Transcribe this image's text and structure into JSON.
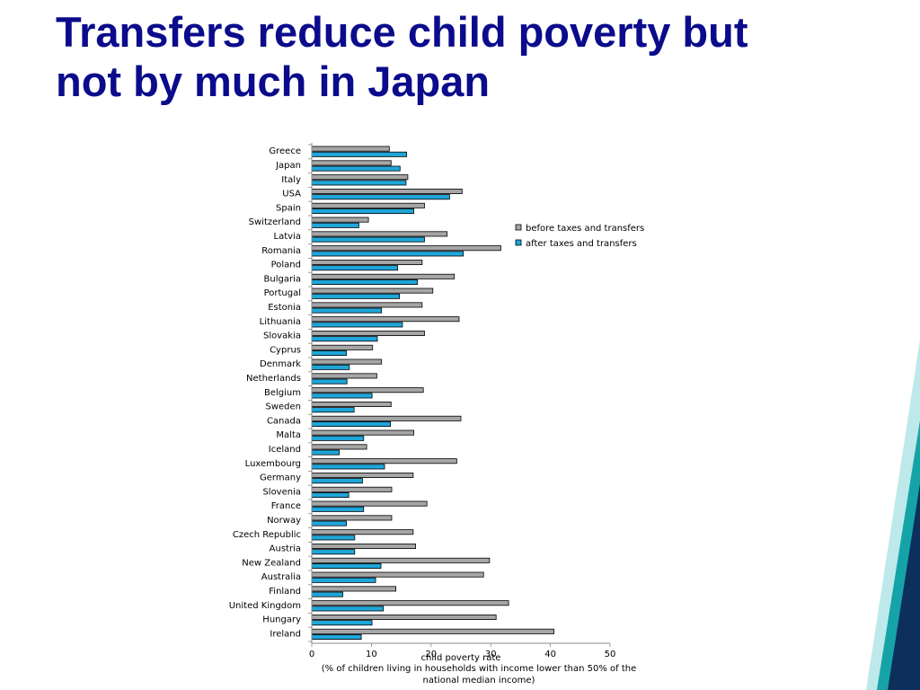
{
  "slide": {
    "title_line1": "Transfers reduce child poverty but",
    "title_line2": "not by much in Japan"
  },
  "colors": {
    "title": "#0b0b8c",
    "before": "#a6a6a6",
    "after": "#1fa6d8",
    "accent_dark": "#0d2f5c",
    "accent_teal": "#15a3a8"
  },
  "chart_data": {
    "type": "bar",
    "orientation": "horizontal",
    "categories": [
      "Greece",
      "Japan",
      "Italy",
      "USA",
      "Spain",
      "Switzerland",
      "Latvia",
      "Romania",
      "Poland",
      "Bulgaria",
      "Portugal",
      "Estonia",
      "Lithuania",
      "Slovakia",
      "Cyprus",
      "Denmark",
      "Netherlands",
      "Belgium",
      "Sweden",
      "Canada",
      "Malta",
      "Iceland",
      "Luxembourg",
      "Germany",
      "Slovenia",
      "France",
      "Norway",
      "Czech Republic",
      "Austria",
      "New Zealand",
      "Australia",
      "Finland",
      "United Kingdom",
      "Hungary",
      "Ireland"
    ],
    "series": [
      {
        "name": "before taxes and transfers",
        "values": [
          13.0,
          13.3,
          16.1,
          25.2,
          18.9,
          9.5,
          22.7,
          31.7,
          18.5,
          23.9,
          20.3,
          18.5,
          24.7,
          18.9,
          10.2,
          11.7,
          10.9,
          18.7,
          13.3,
          25.0,
          17.1,
          9.2,
          24.3,
          17.0,
          13.4,
          19.3,
          13.4,
          17.0,
          17.4,
          29.8,
          28.8,
          14.1,
          33.0,
          30.9,
          40.6
        ]
      },
      {
        "name": "after taxes and transfers",
        "values": [
          15.9,
          14.8,
          15.8,
          23.1,
          17.1,
          7.9,
          18.9,
          25.4,
          14.4,
          17.7,
          14.7,
          11.7,
          15.2,
          11.0,
          5.8,
          6.3,
          5.9,
          10.1,
          7.1,
          13.2,
          8.7,
          4.6,
          12.2,
          8.5,
          6.2,
          8.7,
          5.8,
          7.2,
          7.2,
          11.6,
          10.7,
          5.2,
          12.0,
          10.1,
          8.3
        ]
      }
    ],
    "xlim": [
      0,
      50
    ],
    "xticks": [
      "0",
      "10",
      "20",
      "30",
      "40",
      "50"
    ],
    "xlabel_line1": "child poverty rate",
    "xlabel_line2": "(% of children living in households with income lower than 50% of the",
    "xlabel_line3": "national median income)",
    "legend_position": "right",
    "grid": false
  }
}
